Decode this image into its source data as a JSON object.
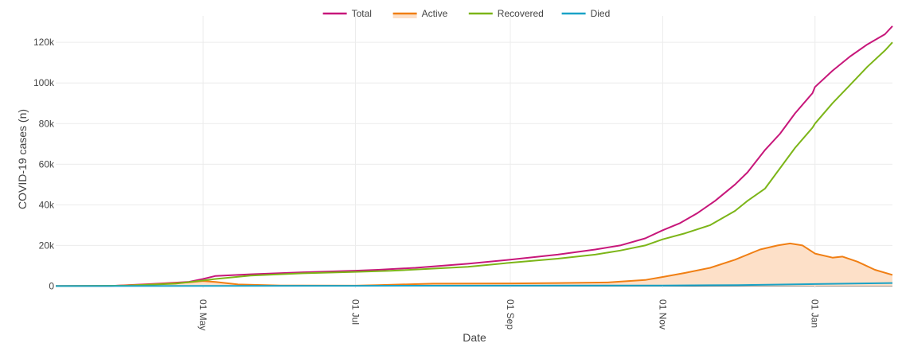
{
  "colors": {
    "total": "#c7177a",
    "active": "#f07f14",
    "active_fill": "#fde0c8",
    "recovered": "#7cb518",
    "died": "#1aa3c7",
    "grid": "#ececec",
    "axis_text": "#444444"
  },
  "chart_data": {
    "type": "line",
    "xlabel": "Date",
    "ylabel": "COVID-19 cases (n)",
    "xlim": [
      "2020-03-03",
      "2021-02-01"
    ],
    "ylim": [
      -1000,
      133000
    ],
    "grid": true,
    "legend": "top-center",
    "x_ticks": [
      {
        "date": "2020-05-01",
        "label": "01 May"
      },
      {
        "date": "2020-07-01",
        "label": "01 Jul"
      },
      {
        "date": "2020-09-01",
        "label": "01 Sep"
      },
      {
        "date": "2020-11-01",
        "label": "01 Nov"
      },
      {
        "date": "2021-01-01",
        "label": "01 Jan"
      }
    ],
    "y_ticks": [
      {
        "value": 0,
        "label": "0"
      },
      {
        "value": 20000,
        "label": "20k"
      },
      {
        "value": 40000,
        "label": "40k"
      },
      {
        "value": 60000,
        "label": "60k"
      },
      {
        "value": 80000,
        "label": "80k"
      },
      {
        "value": 100000,
        "label": "100k"
      },
      {
        "value": 120000,
        "label": "120k"
      }
    ],
    "series": [
      {
        "key": "total",
        "name": "Total",
        "style": "line",
        "points": [
          [
            "2020-03-03",
            0
          ],
          [
            "2020-03-25",
            100
          ],
          [
            "2020-04-10",
            1000
          ],
          [
            "2020-04-25",
            2000
          ],
          [
            "2020-05-01",
            3500
          ],
          [
            "2020-05-06",
            5000
          ],
          [
            "2020-05-20",
            5800
          ],
          [
            "2020-06-10",
            6800
          ],
          [
            "2020-07-01",
            7600
          ],
          [
            "2020-07-10",
            8000
          ],
          [
            "2020-07-25",
            9000
          ],
          [
            "2020-08-15",
            11000
          ],
          [
            "2020-09-01",
            13000
          ],
          [
            "2020-09-20",
            15500
          ],
          [
            "2020-10-05",
            18000
          ],
          [
            "2020-10-15",
            20000
          ],
          [
            "2020-10-25",
            23500
          ],
          [
            "2020-11-01",
            27500
          ],
          [
            "2020-11-08",
            31000
          ],
          [
            "2020-11-15",
            36000
          ],
          [
            "2020-11-22",
            42000
          ],
          [
            "2020-11-30",
            50000
          ],
          [
            "2020-12-05",
            56000
          ],
          [
            "2020-12-12",
            67000
          ],
          [
            "2020-12-18",
            75000
          ],
          [
            "2020-12-24",
            85000
          ],
          [
            "2020-12-31",
            95000
          ],
          [
            "2021-01-01",
            98000
          ],
          [
            "2021-01-08",
            106000
          ],
          [
            "2021-01-15",
            113000
          ],
          [
            "2021-01-22",
            119000
          ],
          [
            "2021-01-29",
            124000
          ],
          [
            "2021-02-01",
            128000
          ]
        ]
      },
      {
        "key": "active",
        "name": "Active",
        "style": "area",
        "points": [
          [
            "2020-03-03",
            0
          ],
          [
            "2020-03-25",
            100
          ],
          [
            "2020-04-10",
            800
          ],
          [
            "2020-04-25",
            1800
          ],
          [
            "2020-05-01",
            2500
          ],
          [
            "2020-05-06",
            2000
          ],
          [
            "2020-05-15",
            800
          ],
          [
            "2020-06-01",
            300
          ],
          [
            "2020-07-01",
            200
          ],
          [
            "2020-07-10",
            500
          ],
          [
            "2020-08-01",
            1200
          ],
          [
            "2020-09-01",
            1300
          ],
          [
            "2020-09-20",
            1500
          ],
          [
            "2020-10-10",
            1800
          ],
          [
            "2020-10-25",
            3000
          ],
          [
            "2020-11-01",
            4500
          ],
          [
            "2020-11-10",
            6500
          ],
          [
            "2020-11-20",
            9000
          ],
          [
            "2020-11-30",
            13000
          ],
          [
            "2020-12-10",
            18000
          ],
          [
            "2020-12-17",
            20000
          ],
          [
            "2020-12-22",
            21000
          ],
          [
            "2020-12-27",
            20000
          ],
          [
            "2021-01-01",
            16000
          ],
          [
            "2021-01-08",
            14000
          ],
          [
            "2021-01-12",
            14500
          ],
          [
            "2021-01-18",
            12000
          ],
          [
            "2021-01-25",
            8000
          ],
          [
            "2021-02-01",
            5500
          ]
        ]
      },
      {
        "key": "recovered",
        "name": "Recovered",
        "style": "line",
        "points": [
          [
            "2020-03-03",
            0
          ],
          [
            "2020-04-01",
            200
          ],
          [
            "2020-04-20",
            1200
          ],
          [
            "2020-05-06",
            3500
          ],
          [
            "2020-05-20",
            5200
          ],
          [
            "2020-06-10",
            6300
          ],
          [
            "2020-07-01",
            7000
          ],
          [
            "2020-07-15",
            7500
          ],
          [
            "2020-08-15",
            9500
          ],
          [
            "2020-09-01",
            11500
          ],
          [
            "2020-09-20",
            13500
          ],
          [
            "2020-10-05",
            15500
          ],
          [
            "2020-10-15",
            17500
          ],
          [
            "2020-10-25",
            20000
          ],
          [
            "2020-11-01",
            23000
          ],
          [
            "2020-11-10",
            26000
          ],
          [
            "2020-11-20",
            30000
          ],
          [
            "2020-11-30",
            37000
          ],
          [
            "2020-12-05",
            42000
          ],
          [
            "2020-12-12",
            48000
          ],
          [
            "2020-12-18",
            58000
          ],
          [
            "2020-12-24",
            68000
          ],
          [
            "2020-12-31",
            78000
          ],
          [
            "2021-01-01",
            80000
          ],
          [
            "2021-01-08",
            90000
          ],
          [
            "2021-01-15",
            99000
          ],
          [
            "2021-01-22",
            108000
          ],
          [
            "2021-01-29",
            116000
          ],
          [
            "2021-02-01",
            120000
          ]
        ]
      },
      {
        "key": "died",
        "name": "Died",
        "style": "line",
        "points": [
          [
            "2020-03-03",
            0
          ],
          [
            "2020-05-01",
            100
          ],
          [
            "2020-07-01",
            150
          ],
          [
            "2020-09-01",
            200
          ],
          [
            "2020-11-01",
            300
          ],
          [
            "2020-12-01",
            500
          ],
          [
            "2021-01-01",
            1000
          ],
          [
            "2021-02-01",
            1500
          ]
        ]
      }
    ]
  }
}
